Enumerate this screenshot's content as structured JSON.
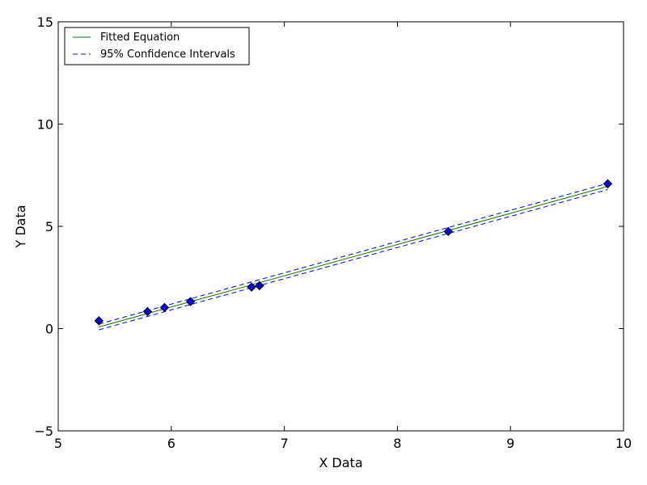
{
  "chart_data": {
    "type": "scatter",
    "title": "",
    "xlabel": "X Data",
    "ylabel": "Y Data",
    "xlim": [
      5,
      10
    ],
    "ylim": [
      -5,
      15
    ],
    "xticks": [
      5,
      6,
      7,
      8,
      9,
      10
    ],
    "yticks": [
      -5,
      0,
      5,
      10,
      15
    ],
    "xtick_labels": [
      "5",
      "6",
      "7",
      "8",
      "9",
      "10"
    ],
    "ytick_labels": [
      "−5",
      "0",
      "5",
      "10",
      "15"
    ],
    "grid": false,
    "legend_position": "top-left",
    "points": {
      "color": "#0000ff",
      "marker": "diamond",
      "x": [
        5.36,
        5.79,
        5.94,
        6.17,
        6.71,
        6.78,
        8.45,
        9.86
      ],
      "y": [
        0.38,
        0.83,
        1.03,
        1.32,
        2.03,
        2.1,
        4.75,
        7.08
      ]
    },
    "series": [
      {
        "name": "Fitted Equation",
        "style": "solid",
        "color": "#008000",
        "x": [
          5.36,
          9.86
        ],
        "y": [
          0.08,
          6.95
        ]
      },
      {
        "name": "95% Confidence Intervals",
        "style": "dashed",
        "color": "#0000ff",
        "x": [
          5.36,
          9.86
        ],
        "y": [
          0.22,
          7.1
        ]
      },
      {
        "name": "",
        "style": "dashed",
        "color": "#0000ff",
        "x": [
          5.36,
          9.86
        ],
        "y": [
          -0.06,
          6.8
        ]
      }
    ]
  }
}
